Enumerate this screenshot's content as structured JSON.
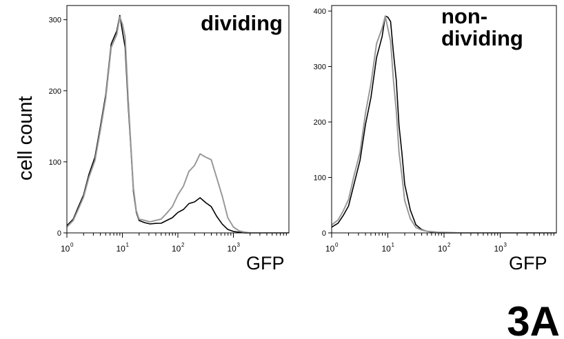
{
  "figure_label": "3A",
  "y_axis_label": "cell count",
  "chart_data": [
    {
      "type": "line",
      "title": "dividing",
      "xlabel": "GFP",
      "ylabel": "cell count",
      "xscale": "log",
      "xlim": [
        1,
        10000
      ],
      "ylim": [
        0,
        320
      ],
      "yticks": [
        0,
        100,
        200,
        300
      ],
      "xticks": [
        1,
        10,
        100,
        1000
      ],
      "xtick_labels": [
        {
          "base": "10",
          "exp": "0"
        },
        {
          "base": "10",
          "exp": "1"
        },
        {
          "base": "10",
          "exp": "2"
        },
        {
          "base": "10",
          "exp": "3"
        }
      ],
      "series": [
        {
          "color": "#000000",
          "x": [
            1.0,
            1.3,
            1.6,
            2.0,
            2.5,
            3.2,
            4.0,
            5.0,
            6.3,
            7.9,
            9.0,
            10.0,
            11.2,
            12.6,
            14.1,
            15.8,
            17.8,
            20.0,
            25.1,
            31.6,
            39.8,
            50.1,
            63.1,
            79.4,
            100,
            126,
            158,
            200,
            251,
            316,
            398,
            501,
            631,
            794,
            1000,
            1259,
            1585,
            2000,
            3000,
            5000,
            10000
          ],
          "y": [
            10,
            20,
            35,
            55,
            80,
            110,
            145,
            200,
            260,
            290,
            300,
            290,
            255,
            190,
            120,
            60,
            28,
            18,
            14,
            13,
            13,
            14,
            17,
            22,
            28,
            34,
            40,
            45,
            48,
            44,
            36,
            24,
            12,
            5,
            2,
            1,
            0,
            0,
            0,
            0,
            0
          ]
        },
        {
          "color": "#999999",
          "x": [
            1.0,
            1.3,
            1.6,
            2.0,
            2.5,
            3.2,
            4.0,
            5.0,
            6.3,
            7.9,
            9.0,
            10.0,
            11.2,
            12.6,
            14.1,
            15.8,
            17.8,
            20.0,
            25.1,
            31.6,
            39.8,
            50.1,
            63.1,
            79.4,
            100,
            126,
            158,
            200,
            251,
            316,
            398,
            501,
            631,
            794,
            1000,
            1259,
            1585,
            2000,
            3000,
            5000,
            10000
          ],
          "y": [
            8,
            18,
            32,
            52,
            76,
            105,
            140,
            195,
            255,
            285,
            298,
            300,
            270,
            200,
            125,
            65,
            30,
            20,
            17,
            16,
            17,
            20,
            27,
            38,
            52,
            68,
            84,
            98,
            108,
            110,
            100,
            80,
            50,
            22,
            8,
            3,
            1,
            0,
            0,
            0,
            0
          ]
        }
      ]
    },
    {
      "type": "line",
      "title": "non-\ndividing",
      "title_lines": [
        "non-",
        "dividing"
      ],
      "xlabel": "GFP",
      "ylabel": "",
      "xscale": "log",
      "xlim": [
        1,
        10000
      ],
      "ylim": [
        0,
        410
      ],
      "yticks": [
        0,
        100,
        200,
        300,
        400
      ],
      "xticks": [
        1,
        10,
        100,
        1000
      ],
      "xtick_labels": [
        {
          "base": "10",
          "exp": "0"
        },
        {
          "base": "10",
          "exp": "1"
        },
        {
          "base": "10",
          "exp": "2"
        },
        {
          "base": "10",
          "exp": "3"
        }
      ],
      "series": [
        {
          "color": "#000000",
          "x": [
            1.0,
            1.3,
            1.6,
            2.0,
            2.5,
            3.2,
            4.0,
            5.0,
            6.3,
            7.9,
            9.0,
            10.0,
            11.2,
            12.6,
            14.1,
            15.8,
            17.8,
            20.0,
            25.1,
            31.6,
            39.8,
            50.1,
            63.1,
            79.4,
            100,
            200,
            1000,
            10000
          ],
          "y": [
            10,
            18,
            30,
            50,
            85,
            135,
            190,
            250,
            310,
            360,
            385,
            395,
            375,
            330,
            270,
            200,
            140,
            90,
            40,
            15,
            6,
            3,
            1,
            0,
            0,
            0,
            0,
            0
          ]
        },
        {
          "color": "#999999",
          "x": [
            1.0,
            1.3,
            1.6,
            2.0,
            2.5,
            3.2,
            4.0,
            5.0,
            6.3,
            7.9,
            9.0,
            10.0,
            11.2,
            12.6,
            14.1,
            15.8,
            17.8,
            20.0,
            25.1,
            31.6,
            39.8,
            50.1,
            63.1,
            79.4,
            100,
            200,
            1000,
            10000
          ],
          "y": [
            14,
            24,
            38,
            62,
            100,
            150,
            210,
            275,
            335,
            375,
            385,
            375,
            340,
            280,
            215,
            150,
            100,
            60,
            25,
            10,
            5,
            3,
            2,
            1,
            1,
            0,
            0,
            0
          ]
        }
      ]
    }
  ]
}
